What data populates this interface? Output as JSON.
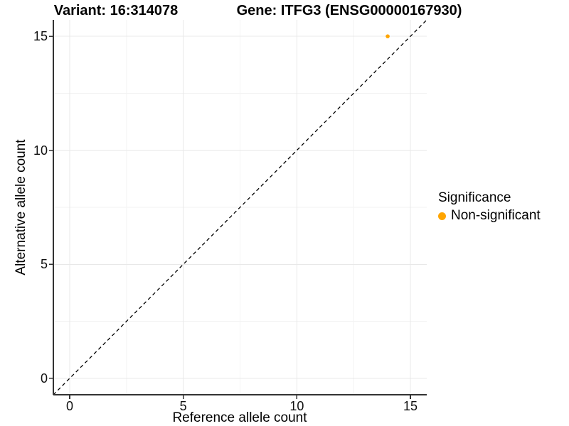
{
  "chart_data": {
    "type": "scatter",
    "titles": [
      "Variant: 16:314078",
      "Gene: ITFG3 (ENSG00000167930)"
    ],
    "xlabel": "Reference allele count",
    "ylabel": "Alternative allele count",
    "xlim": [
      -0.72,
      15.72
    ],
    "ylim": [
      -0.72,
      15.72
    ],
    "xticks": [
      0,
      5,
      10,
      15
    ],
    "yticks": [
      0,
      5,
      10,
      15
    ],
    "x_minor_ticks": [
      2.5,
      7.5,
      12.5
    ],
    "y_minor_ticks": [
      2.5,
      7.5,
      12.5
    ],
    "grid": "major+minor",
    "reference_line": {
      "kind": "identity",
      "equation": "y = x",
      "style": "dashed",
      "color": "#000000"
    },
    "series": [
      {
        "name": "Non-significant",
        "color": "#FFA500",
        "points": [
          {
            "x": 14,
            "y": 15
          }
        ]
      }
    ],
    "legend": {
      "title": "Significance",
      "position": "right",
      "entries": [
        {
          "label": "Non-significant",
          "color": "#FFA500",
          "marker": "dot"
        }
      ]
    }
  },
  "colors": {
    "background": "#FFFFFF",
    "axis_line": "#333333",
    "grid_major": "#E8E8E8",
    "grid_minor": "#F3F3F3",
    "text": "#000000"
  }
}
